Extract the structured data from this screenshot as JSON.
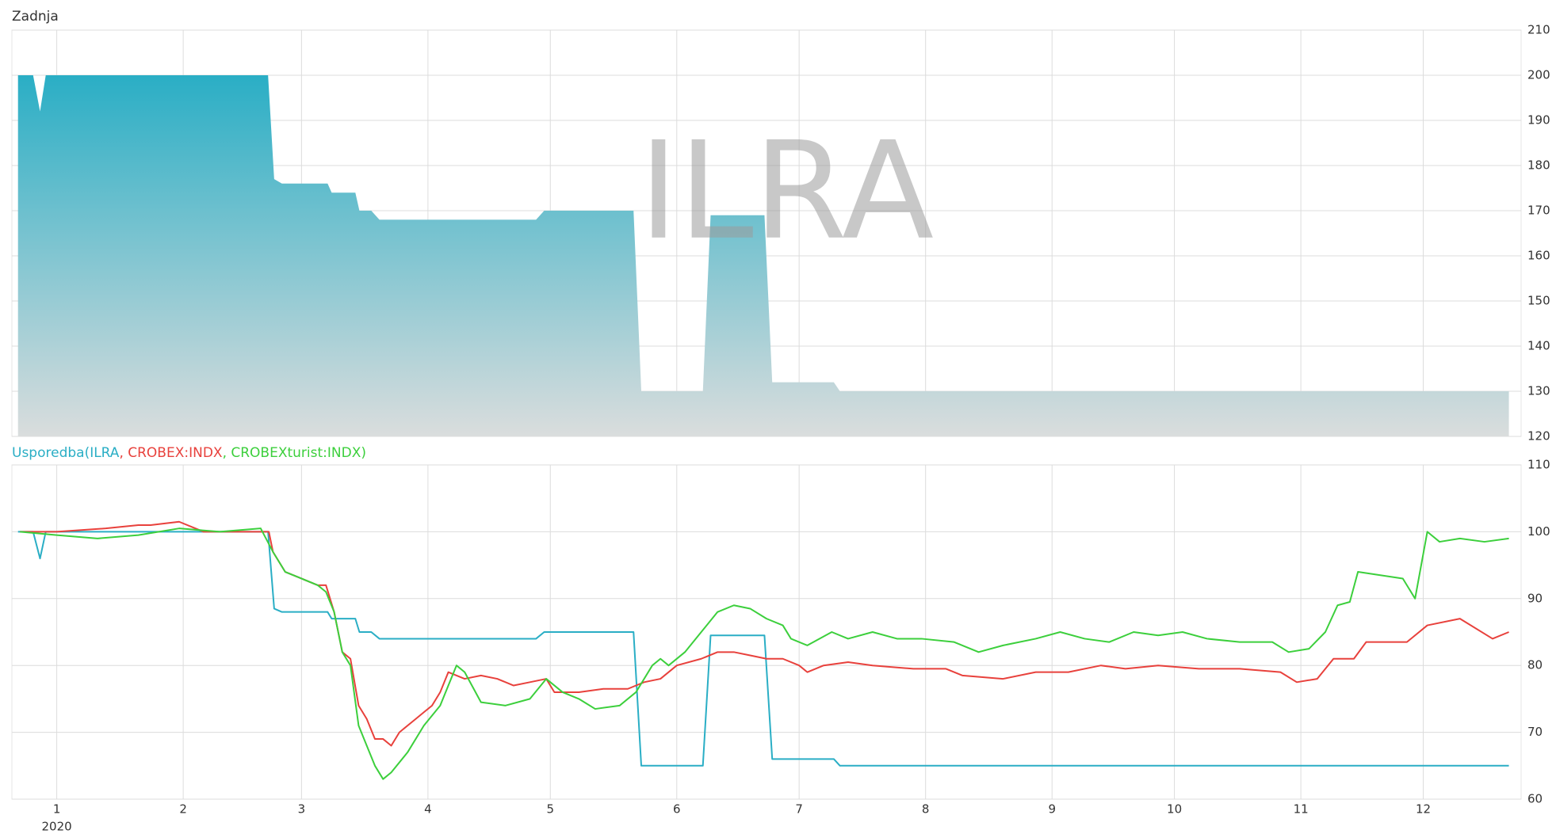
{
  "chart_data": [
    {
      "type": "area",
      "title": "Zadnja",
      "watermark": "ILRA",
      "color": "#2aaec5",
      "xlim": [
        -11,
        359
      ],
      "ylim": [
        120,
        210
      ],
      "xticks": [
        0,
        31,
        60,
        91,
        121,
        152,
        182,
        213,
        244,
        274,
        305,
        335
      ],
      "yticks": [
        120,
        130,
        140,
        150,
        160,
        170,
        180,
        190,
        200,
        210
      ],
      "grid": true,
      "series": [
        {
          "color": "#2aaec5",
          "x": [
            -9.5,
            -5.8,
            -4.1,
            -2.7,
            51.8,
            53.3,
            55.2,
            66.4,
            67.4,
            73.2,
            74.2,
            77.1,
            79.1,
            117.5,
            119.5,
            141.4,
            143.3,
            158.4,
            160.3,
            173.5,
            175.4,
            190.5,
            192.0,
            356.0
          ],
          "values": [
            200,
            200,
            192,
            200,
            200,
            177,
            176,
            176,
            174,
            174,
            170,
            170,
            168,
            168,
            170,
            170,
            130,
            130,
            169,
            169,
            132,
            132,
            130,
            130
          ]
        }
      ]
    },
    {
      "type": "line",
      "title": [
        "Usporedba(ILRA",
        ", CROBEX:INDX",
        ", CROBEXturist:INDX)"
      ],
      "xlabel": "2020",
      "xlim": [
        -11,
        359
      ],
      "ylim": [
        60,
        110
      ],
      "xticks": [
        {
          "value": 0,
          "label": "1"
        },
        {
          "value": 31,
          "label": "2"
        },
        {
          "value": 60,
          "label": "3"
        },
        {
          "value": 91,
          "label": "4"
        },
        {
          "value": 121,
          "label": "5"
        },
        {
          "value": 152,
          "label": "6"
        },
        {
          "value": 182,
          "label": "7"
        },
        {
          "value": 213,
          "label": "8"
        },
        {
          "value": 244,
          "label": "9"
        },
        {
          "value": 274,
          "label": "10"
        },
        {
          "value": 305,
          "label": "11"
        },
        {
          "value": 335,
          "label": "12"
        }
      ],
      "yticks": [
        60,
        70,
        80,
        90,
        100,
        110
      ],
      "grid": true,
      "series": [
        {
          "name": "ILRA",
          "color": "#2aaec5",
          "x": [
            -9.5,
            -5.8,
            -4.1,
            -2.7,
            51.8,
            53.3,
            55.2,
            66.4,
            67.4,
            73.2,
            74.2,
            77.1,
            79.1,
            117.5,
            119.5,
            141.4,
            143.3,
            158.4,
            160.3,
            173.5,
            175.4,
            190.5,
            192.0,
            356.0
          ],
          "values": [
            100,
            100,
            96,
            100,
            100,
            88.5,
            88,
            88,
            87,
            87,
            85,
            85,
            84,
            84,
            85,
            85,
            65,
            65,
            84.5,
            84.5,
            66,
            66,
            65,
            65
          ]
        },
        {
          "name": "CROBEX:INDX",
          "color": "#e8413c",
          "x": [
            -9,
            0,
            12,
            20,
            23,
            30,
            36,
            45,
            52,
            53,
            56,
            60,
            64,
            66,
            68,
            70,
            72,
            74,
            76,
            78,
            80,
            82,
            84,
            88,
            90,
            92,
            94,
            96,
            100,
            104,
            108,
            112,
            116,
            120,
            122,
            128,
            134,
            140,
            144,
            148,
            152,
            158,
            162,
            166,
            170,
            174,
            178,
            182,
            184,
            188,
            194,
            200,
            210,
            218,
            222,
            232,
            240,
            248,
            256,
            262,
            270,
            280,
            290,
            300,
            304,
            309,
            313,
            318,
            321,
            331,
            336,
            344,
            352,
            356
          ],
          "values": [
            100,
            100,
            100.5,
            101,
            101,
            101.5,
            100,
            100,
            100,
            97,
            94,
            93,
            92,
            92,
            88,
            82,
            81,
            74,
            72,
            69,
            69,
            68,
            70,
            72,
            73,
            74,
            76,
            79,
            78,
            78.5,
            78,
            77,
            77.5,
            78,
            76,
            76,
            76.5,
            76.5,
            77.5,
            78,
            80,
            81,
            82,
            82,
            81.5,
            81,
            81,
            80,
            79,
            80,
            80.5,
            80,
            79.5,
            79.5,
            78.5,
            78,
            79,
            79,
            80,
            79.5,
            80,
            79.5,
            79.5,
            79,
            77.5,
            78,
            81,
            81,
            83.5,
            83.5,
            86,
            87,
            84,
            85
          ]
        },
        {
          "name": "CROBEXturist:INDX",
          "color": "#3ccf3c",
          "x": [
            -9,
            0,
            10,
            20,
            30,
            40,
            50,
            53,
            56,
            60,
            64,
            66,
            68,
            70,
            72,
            74,
            76,
            78,
            80,
            82,
            86,
            90,
            94,
            96,
            98,
            100,
            104,
            110,
            116,
            120,
            124,
            128,
            132,
            138,
            142,
            146,
            148,
            150,
            154,
            158,
            162,
            166,
            170,
            174,
            178,
            180,
            184,
            190,
            194,
            200,
            206,
            212,
            220,
            226,
            232,
            240,
            246,
            252,
            258,
            264,
            270,
            276,
            282,
            290,
            298,
            302,
            307,
            311,
            314,
            317,
            319,
            330,
            333,
            336,
            339,
            344,
            350,
            356
          ],
          "values": [
            100,
            99.5,
            99,
            99.5,
            100.5,
            100,
            100.5,
            97,
            94,
            93,
            92,
            91,
            88,
            82,
            80,
            71,
            68,
            65,
            63,
            64,
            67,
            71,
            74,
            77,
            80,
            79,
            74.5,
            74,
            75,
            78,
            76,
            75,
            73.5,
            74,
            76,
            80,
            81,
            80,
            82,
            85,
            88,
            89,
            88.5,
            87,
            86,
            84,
            83,
            85,
            84,
            85,
            84,
            84,
            83.5,
            82,
            83,
            84,
            85,
            84,
            83.5,
            85,
            84.5,
            85,
            84,
            83.5,
            83.5,
            82,
            82.5,
            85,
            89,
            89.5,
            94,
            93,
            90,
            100,
            98.5,
            99,
            98.5,
            99
          ]
        }
      ]
    }
  ]
}
